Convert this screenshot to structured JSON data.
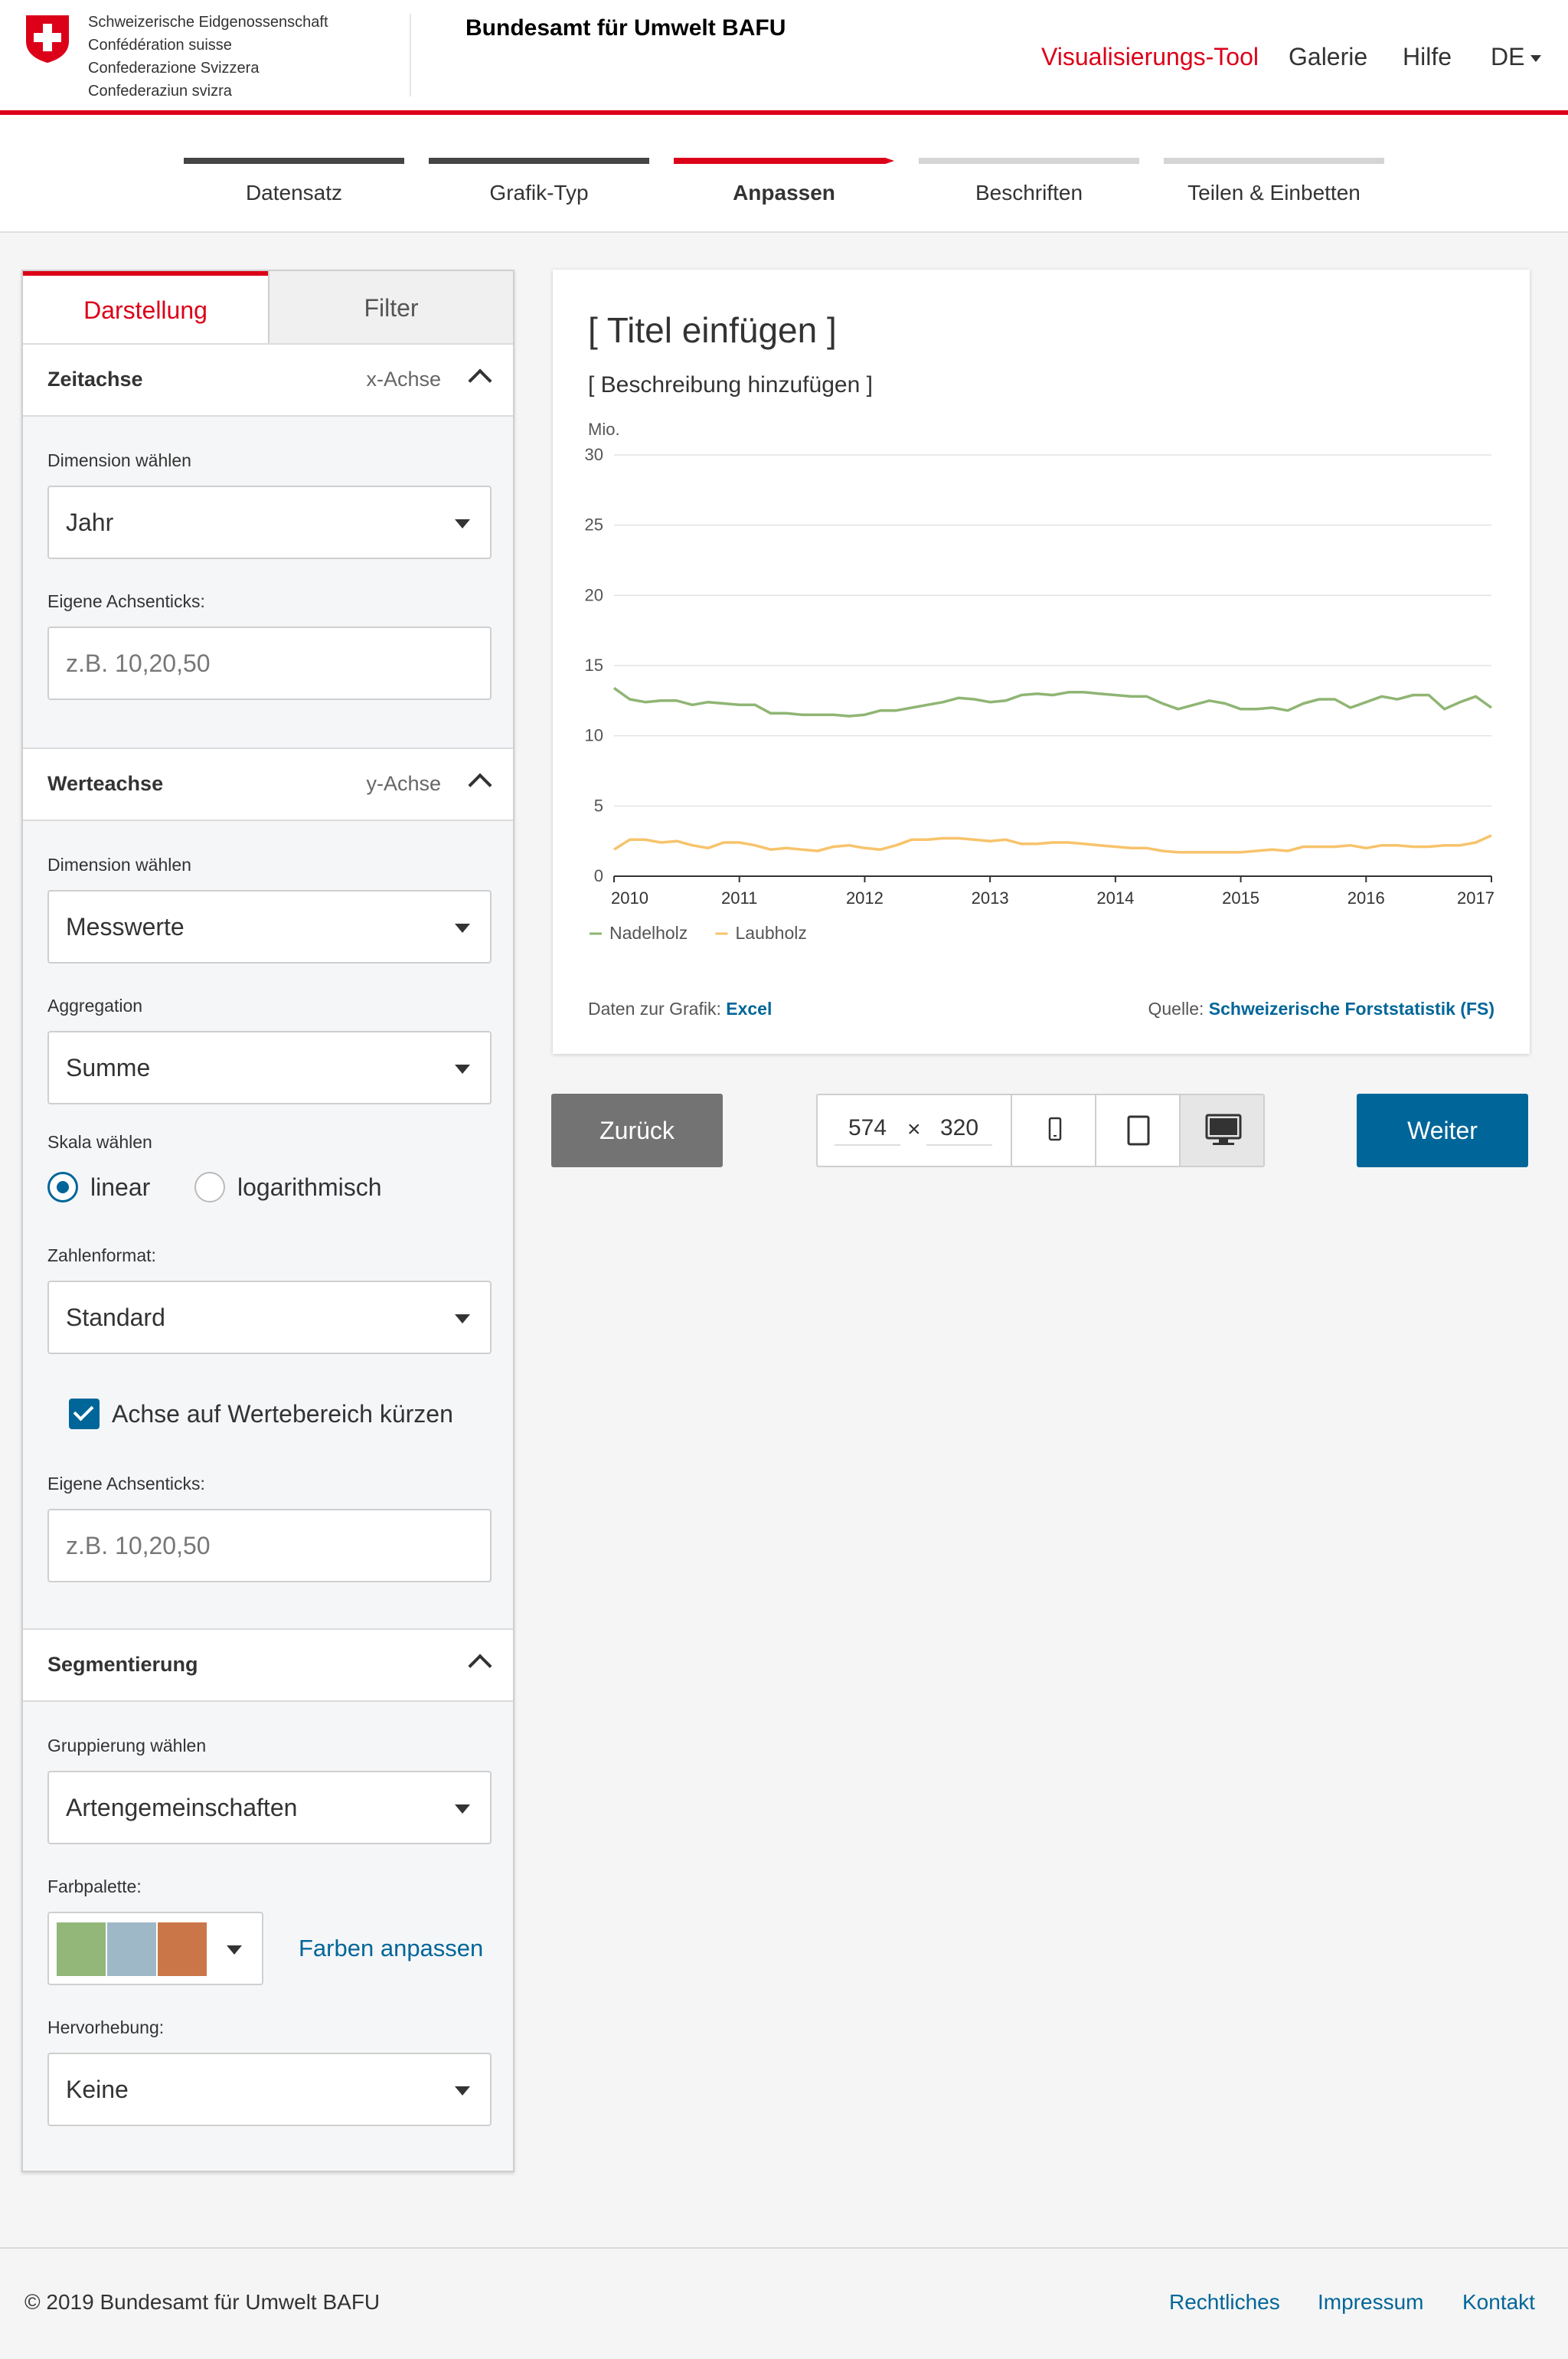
{
  "header": {
    "confederation_lines": [
      "Schweizerische Eidgenossenschaft",
      "Confédération suisse",
      "Confederazione Svizzera",
      "Confederaziun svizra"
    ],
    "office_name": "Bundesamt für Umwelt BAFU",
    "nav": {
      "tool": "Visualisierungs-Tool",
      "gallery": "Galerie",
      "help": "Hilfe",
      "lang": "DE"
    },
    "colors": {
      "brand_red": "#dc0018",
      "link_blue": "#006699"
    }
  },
  "stepper": {
    "steps": [
      "Datensatz",
      "Grafik-Typ",
      "Anpassen",
      "Beschriften",
      "Teilen & Einbetten"
    ],
    "active_index": 2
  },
  "panel": {
    "tabs": {
      "active": "Darstellung",
      "inactive": "Filter"
    },
    "time_axis": {
      "title": "Zeitachse",
      "axis": "x-Achse",
      "dimension_label": "Dimension wählen",
      "dimension_value": "Jahr",
      "ticks_label": "Eigene Achsenticks:",
      "ticks_placeholder": "z.B. 10,20,50"
    },
    "value_axis": {
      "title": "Werteachse",
      "axis": "y-Achse",
      "dimension_label": "Dimension wählen",
      "dimension_value": "Messwerte",
      "aggregation_label": "Aggregation",
      "aggregation_value": "Summe",
      "scale_label": "Skala wählen",
      "scale_linear": "linear",
      "scale_log": "logarithmisch",
      "scale_selected": "linear",
      "number_format_label": "Zahlenformat:",
      "number_format_value": "Standard",
      "truncate_label": "Achse auf Wertebereich kürzen",
      "truncate_checked": true,
      "ticks_label": "Eigene Achsenticks:",
      "ticks_placeholder": "z.B. 10,20,50"
    },
    "segmentation": {
      "title": "Segmentierung",
      "grouping_label": "Gruppierung wählen",
      "grouping_value": "Artengemeinschaften",
      "palette_label": "Farbpalette:",
      "palette_colors": [
        "#93b779",
        "#9fb8c8",
        "#cb7649"
      ],
      "customize_colors": "Farben anpassen",
      "highlight_label": "Hervorhebung:",
      "highlight_value": "Keine"
    }
  },
  "chart": {
    "title": "[ Titel einfügen ]",
    "description": "[ Beschreibung hinzufügen ]",
    "data_label": "Daten zur Grafik:",
    "data_link": "Excel",
    "source_label": "Quelle:",
    "source_link": "Schweizerische Forststatistik (FS)"
  },
  "chart_data": {
    "type": "line",
    "title": "",
    "xlabel": "",
    "ylabel": "Mio.",
    "xlim": [
      2010,
      2017
    ],
    "ylim": [
      0,
      30
    ],
    "x_ticks": [
      2010,
      2011,
      2012,
      2013,
      2014,
      2015,
      2016,
      2017
    ],
    "y_ticks": [
      0,
      5,
      10,
      15,
      20,
      25,
      30
    ],
    "grid": true,
    "legend_placement": "bottom-left",
    "x": [
      2010.0,
      2010.125,
      2010.25,
      2010.375,
      2010.5,
      2010.625,
      2010.75,
      2010.875,
      2011.0,
      2011.125,
      2011.25,
      2011.375,
      2011.5,
      2011.625,
      2011.75,
      2011.875,
      2012.0,
      2012.125,
      2012.25,
      2012.375,
      2012.5,
      2012.625,
      2012.75,
      2012.875,
      2013.0,
      2013.125,
      2013.25,
      2013.375,
      2013.5,
      2013.625,
      2013.75,
      2013.875,
      2014.0,
      2014.125,
      2014.25,
      2014.375,
      2014.5,
      2014.625,
      2014.75,
      2014.875,
      2015.0,
      2015.125,
      2015.25,
      2015.375,
      2015.5,
      2015.625,
      2015.75,
      2015.875,
      2016.0,
      2016.125,
      2016.25,
      2016.375,
      2016.5,
      2016.625,
      2016.75,
      2016.875,
      2017.0
    ],
    "series": [
      {
        "name": "Nadelholz",
        "color": "#8fb573",
        "values": [
          13.4,
          12.6,
          12.4,
          12.5,
          12.5,
          12.2,
          12.4,
          12.3,
          12.2,
          12.2,
          11.6,
          11.6,
          11.5,
          11.5,
          11.5,
          11.4,
          11.5,
          11.8,
          11.8,
          12.0,
          12.2,
          12.4,
          12.7,
          12.6,
          12.4,
          12.5,
          12.9,
          13.0,
          12.9,
          13.1,
          13.1,
          13.0,
          12.9,
          12.8,
          12.8,
          12.3,
          11.9,
          12.2,
          12.5,
          12.3,
          11.9,
          11.9,
          12.0,
          11.8,
          12.3,
          12.6,
          12.6,
          12.0,
          12.4,
          12.8,
          12.6,
          12.9,
          12.9,
          11.9,
          12.4,
          12.8,
          12.0
        ]
      },
      {
        "name": "Laubholz",
        "color": "#f7c36b",
        "values": [
          1.9,
          2.6,
          2.6,
          2.4,
          2.5,
          2.2,
          2.0,
          2.4,
          2.4,
          2.2,
          1.9,
          2.0,
          1.9,
          1.8,
          2.1,
          2.2,
          2.0,
          1.9,
          2.2,
          2.6,
          2.6,
          2.7,
          2.7,
          2.6,
          2.5,
          2.6,
          2.3,
          2.3,
          2.4,
          2.4,
          2.3,
          2.2,
          2.1,
          2.0,
          2.0,
          1.8,
          1.7,
          1.7,
          1.7,
          1.7,
          1.7,
          1.8,
          1.9,
          1.8,
          2.1,
          2.1,
          2.1,
          2.2,
          2.0,
          2.2,
          2.2,
          2.1,
          2.1,
          2.2,
          2.2,
          2.4,
          2.9
        ]
      }
    ]
  },
  "controls": {
    "back": "Zurück",
    "next": "Weiter",
    "width": "574",
    "height": "320",
    "times": "×",
    "device_icons": [
      "phone-icon",
      "tablet-icon",
      "desktop-icon"
    ],
    "active_device": "desktop"
  },
  "footer": {
    "copyright": "© 2019 Bundesamt für Umwelt BAFU",
    "links": [
      "Rechtliches",
      "Impressum",
      "Kontakt"
    ]
  }
}
